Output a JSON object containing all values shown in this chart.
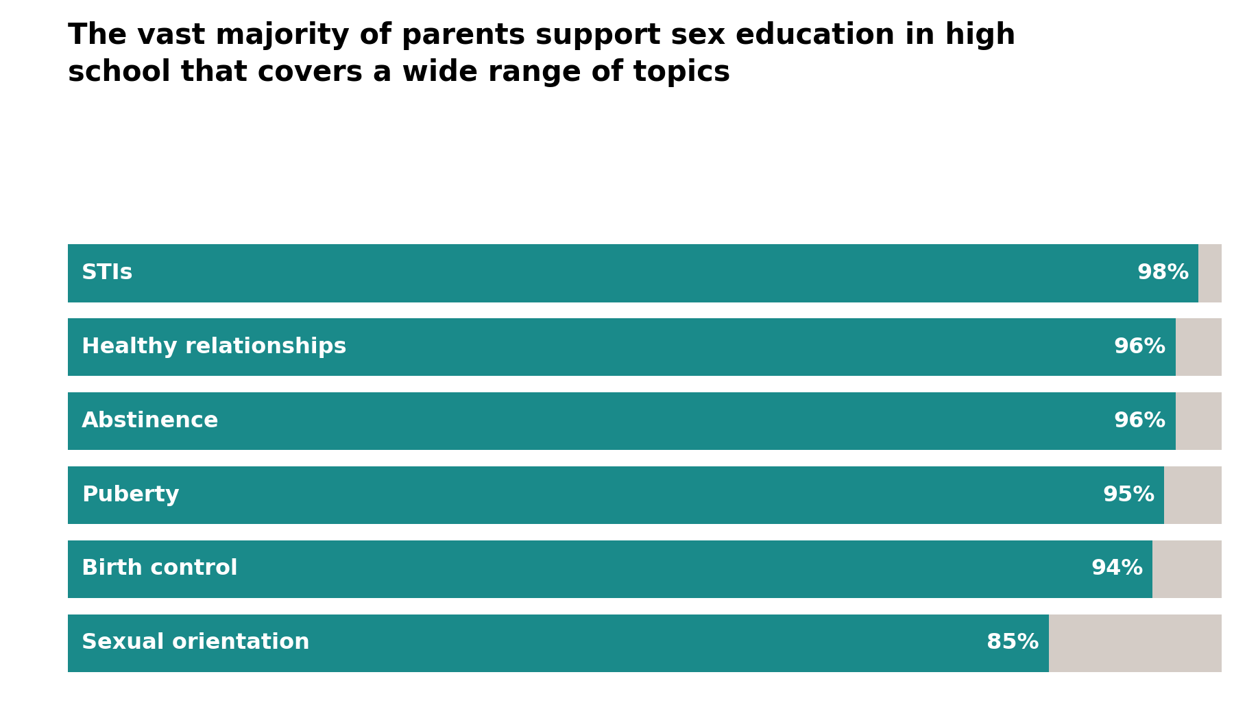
{
  "title": "The vast majority of parents support sex education in high\nschool that covers a wide range of topics",
  "categories": [
    "STIs",
    "Healthy relationships",
    "Abstinence",
    "Puberty",
    "Birth control",
    "Sexual orientation"
  ],
  "values": [
    98,
    96,
    96,
    95,
    94,
    85
  ],
  "max_value": 100,
  "bar_color": "#1a8a8a",
  "bg_color": "#d4ccc6",
  "label_color": "#ffffff",
  "pct_color": "#ffffff",
  "title_color": "#000000",
  "background_color": "#ffffff",
  "title_fontsize": 30,
  "label_fontsize": 23,
  "pct_fontsize": 23
}
